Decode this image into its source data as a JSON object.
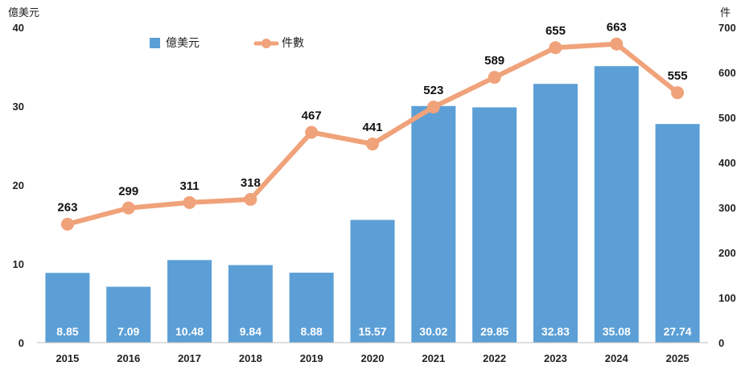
{
  "chart_data": {
    "type": "bar",
    "combo": "bar+line",
    "categories": [
      "2015",
      "2016",
      "2017",
      "2018",
      "2019",
      "2020",
      "2021",
      "2022",
      "2023",
      "2024",
      "2025"
    ],
    "series": [
      {
        "name": "億美元",
        "type": "bar",
        "axis": "left",
        "color": "#5b9fd6",
        "values": [
          8.85,
          7.09,
          10.48,
          9.84,
          8.88,
          15.57,
          30.02,
          29.85,
          32.83,
          35.08,
          27.74
        ]
      },
      {
        "name": "件數",
        "type": "line",
        "axis": "right",
        "color": "#f0a27a",
        "values": [
          263,
          299,
          311,
          318,
          467,
          441,
          523,
          589,
          655,
          663,
          555
        ]
      }
    ],
    "y_left": {
      "unit_label": "億美元",
      "ylim": [
        0,
        40
      ],
      "ticks": [
        0,
        10,
        20,
        30,
        40
      ]
    },
    "y_right": {
      "unit_label": "件",
      "ylim": [
        0,
        700
      ],
      "ticks": [
        0,
        100,
        200,
        300,
        400,
        500,
        600,
        700
      ]
    },
    "legend": {
      "placement": "top-left",
      "items": [
        "億美元",
        "件數"
      ]
    },
    "grid": false,
    "data_labels": true
  }
}
